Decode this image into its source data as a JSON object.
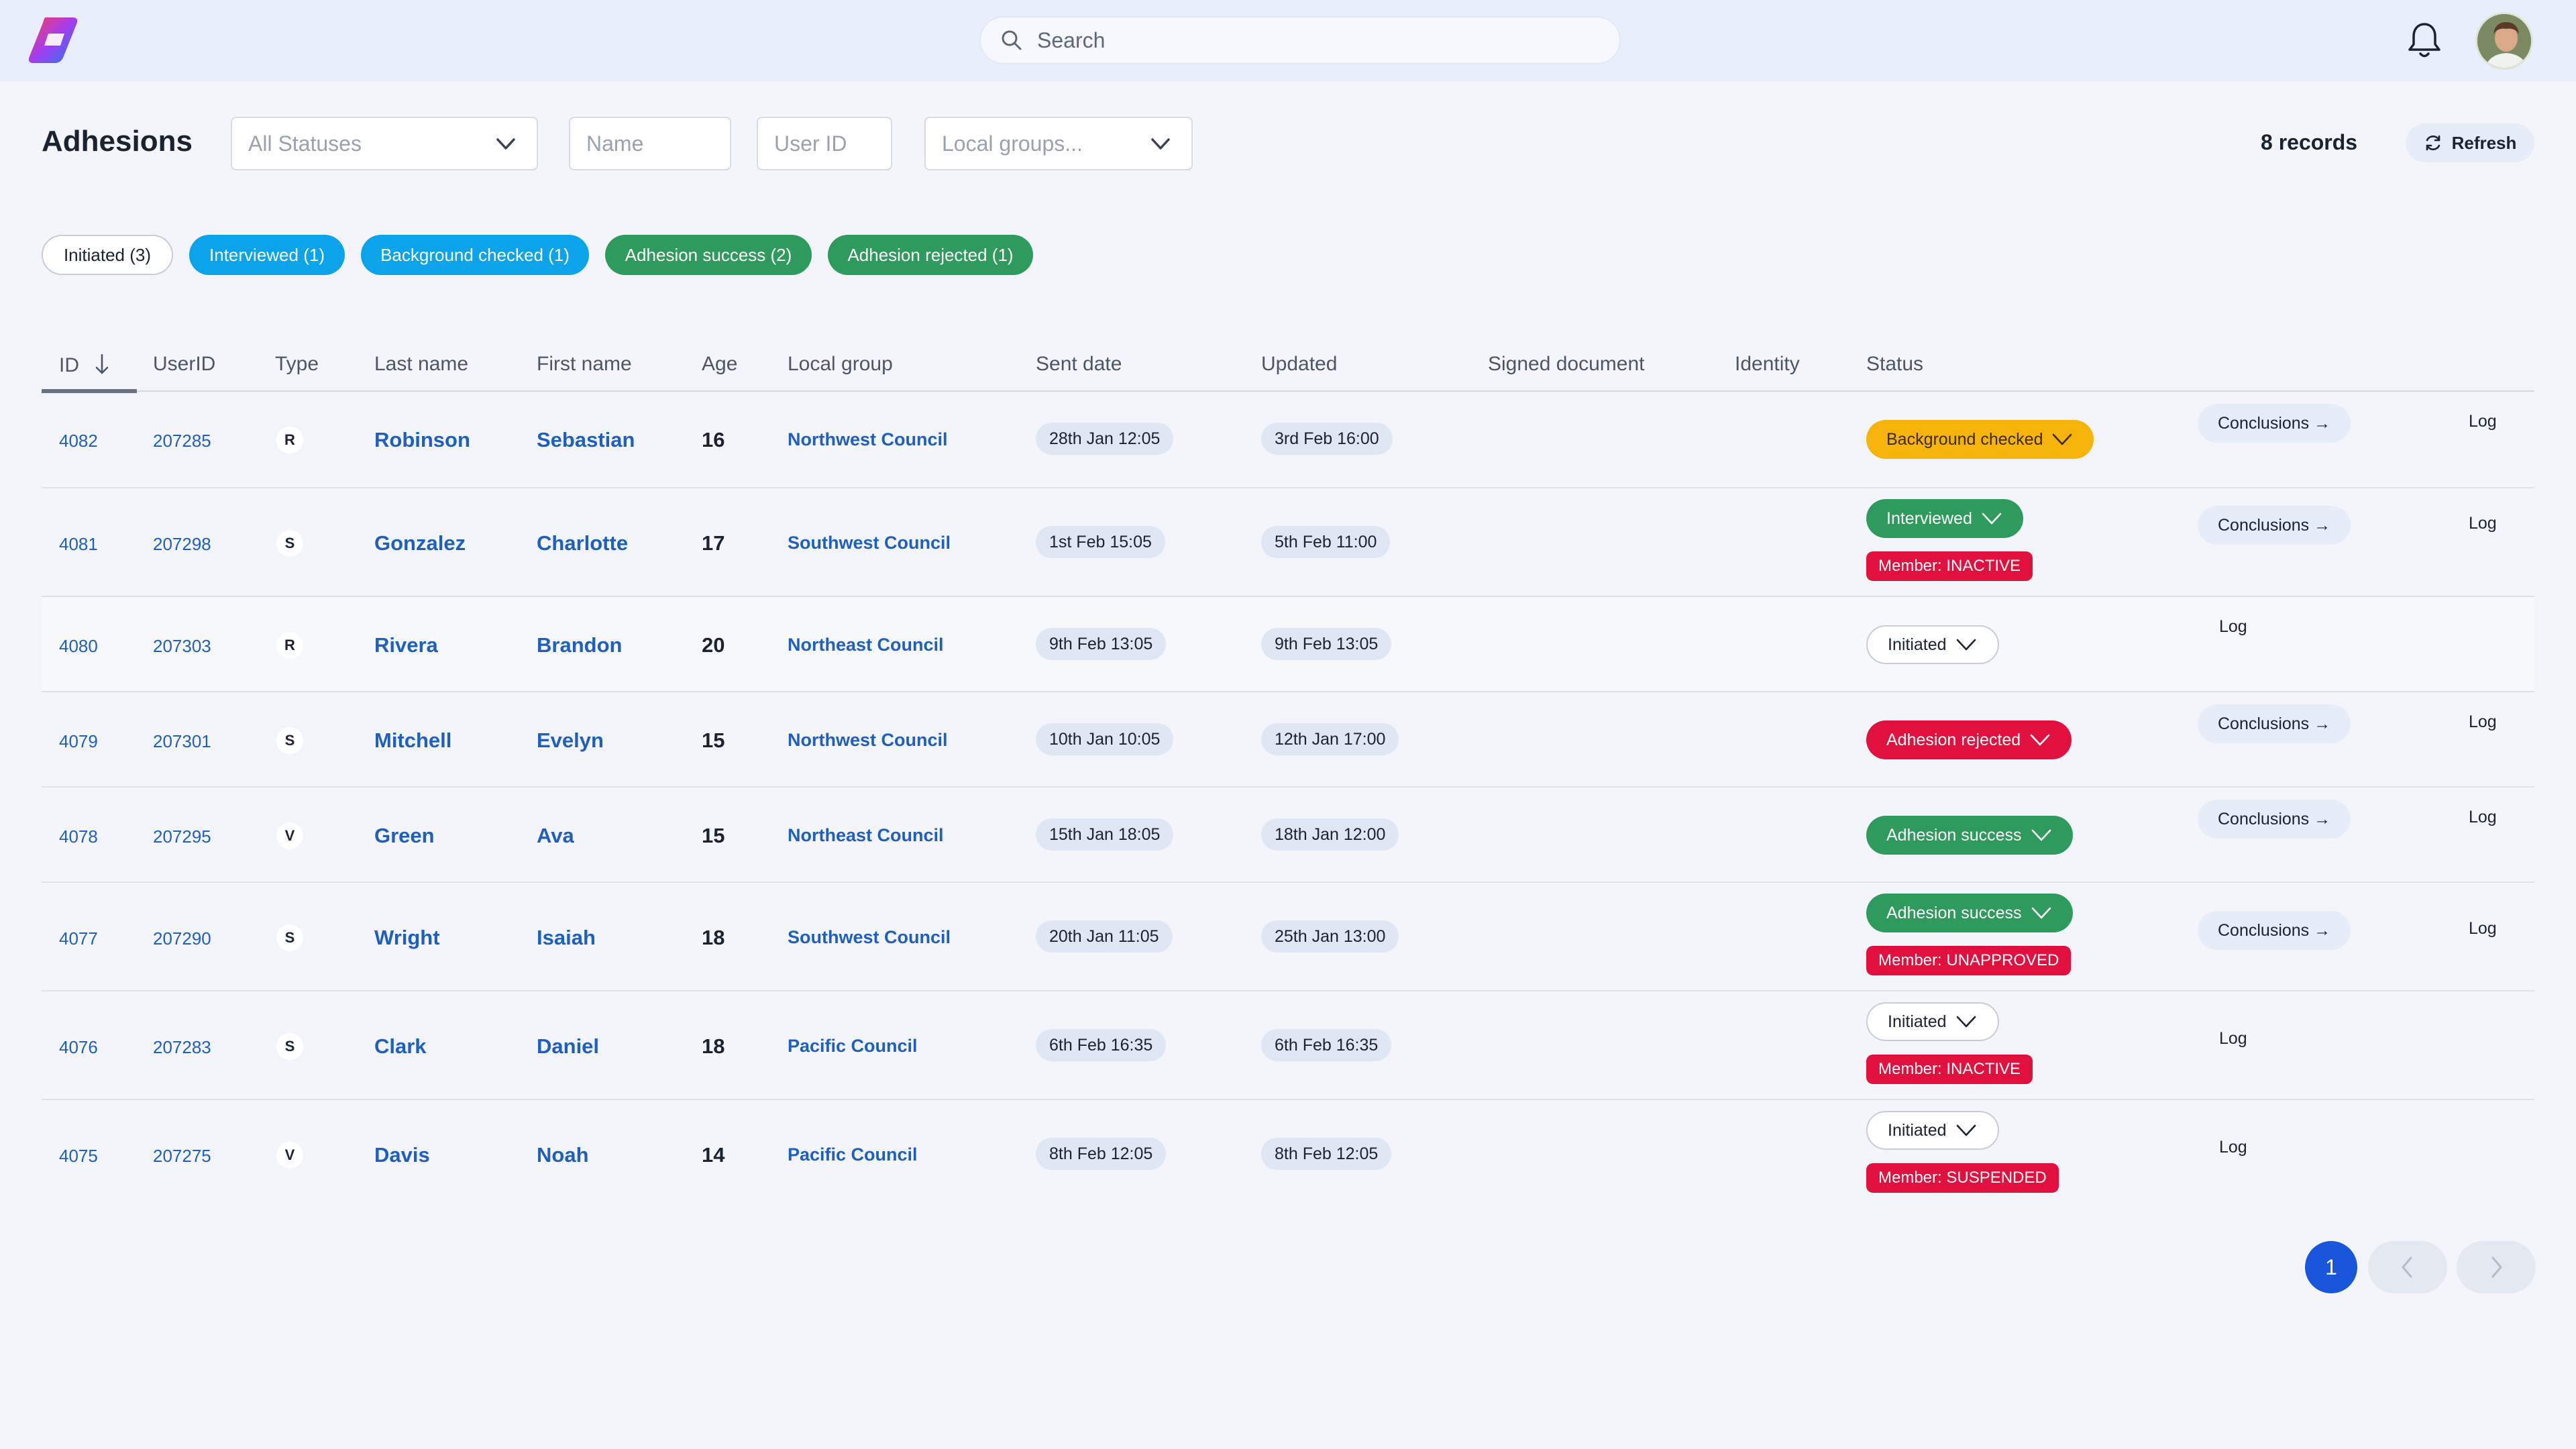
{
  "header": {
    "search_placeholder": "Search"
  },
  "page": {
    "title": "Adhesions",
    "filters": {
      "status_select": "All Statuses",
      "name_placeholder": "Name",
      "userid_placeholder": "User ID",
      "local_groups_select": "Local groups..."
    },
    "records": "8 records",
    "refresh_label": "Refresh"
  },
  "chips": [
    {
      "label": "Initiated (3)"
    },
    {
      "label": "Interviewed (1)"
    },
    {
      "label": "Background checked (1)"
    },
    {
      "label": "Adhesion success (2)"
    },
    {
      "label": "Adhesion rejected (1)"
    }
  ],
  "table": {
    "columns": [
      "ID",
      "UserID",
      "Type",
      "Last name",
      "First name",
      "Age",
      "Local group",
      "Sent date",
      "Updated",
      "Signed document",
      "Identity",
      "Status"
    ],
    "rows": [
      {
        "id": "4082",
        "userid": "207285",
        "type": "R",
        "last": "Robinson",
        "first": "Sebastian",
        "age": "16",
        "group": "Northwest Council",
        "sent": "28th Jan 12:05",
        "updated": "3rd Feb 16:00",
        "status": "Background checked",
        "member": "",
        "conclusions": "Conclusions →",
        "log": "Log"
      },
      {
        "id": "4081",
        "userid": "207298",
        "type": "S",
        "last": "Gonzalez",
        "first": "Charlotte",
        "age": "17",
        "group": "Southwest Council",
        "sent": "1st Feb 15:05",
        "updated": "5th Feb 11:00",
        "status": "Interviewed",
        "member": "Member: INACTIVE",
        "conclusions": "Conclusions →",
        "log": "Log"
      },
      {
        "id": "4080",
        "userid": "207303",
        "type": "R",
        "last": "Rivera",
        "first": "Brandon",
        "age": "20",
        "group": "Northeast Council",
        "sent": "9th Feb 13:05",
        "updated": "9th Feb 13:05",
        "status": "Initiated",
        "member": "",
        "conclusions": "",
        "log": "Log"
      },
      {
        "id": "4079",
        "userid": "207301",
        "type": "S",
        "last": "Mitchell",
        "first": "Evelyn",
        "age": "15",
        "group": "Northwest Council",
        "sent": "10th Jan 10:05",
        "updated": "12th Jan 17:00",
        "status": "Adhesion rejected",
        "member": "",
        "conclusions": "Conclusions →",
        "log": "Log"
      },
      {
        "id": "4078",
        "userid": "207295",
        "type": "V",
        "last": "Green",
        "first": "Ava",
        "age": "15",
        "group": "Northeast Council",
        "sent": "15th Jan 18:05",
        "updated": "18th Jan 12:00",
        "status": "Adhesion success",
        "member": "",
        "conclusions": "Conclusions →",
        "log": "Log"
      },
      {
        "id": "4077",
        "userid": "207290",
        "type": "S",
        "last": "Wright",
        "first": "Isaiah",
        "age": "18",
        "group": "Southwest Council",
        "sent": "20th Jan 11:05",
        "updated": "25th Jan 13:00",
        "status": "Adhesion success",
        "member": "Member: UNAPPROVED",
        "conclusions": "Conclusions →",
        "log": "Log"
      },
      {
        "id": "4076",
        "userid": "207283",
        "type": "S",
        "last": "Clark",
        "first": "Daniel",
        "age": "18",
        "group": "Pacific Council",
        "sent": "6th Feb 16:35",
        "updated": "6th Feb 16:35",
        "status": "Initiated",
        "member": "Member: INACTIVE",
        "conclusions": "",
        "log": "Log"
      },
      {
        "id": "4075",
        "userid": "207275",
        "type": "V",
        "last": "Davis",
        "first": "Noah",
        "age": "14",
        "group": "Pacific Council",
        "sent": "8th Feb 12:05",
        "updated": "8th Feb 12:05",
        "status": "Initiated",
        "member": "Member: SUSPENDED",
        "conclusions": "",
        "log": "Log"
      }
    ]
  },
  "pagination": {
    "current": "1"
  },
  "colors": {
    "accent_blue": "#1a56db",
    "chip_blue": "#0ba4ea",
    "success_green": "#2f9a5e",
    "danger_red": "#e2103f",
    "warning_amber": "#f6b40b"
  }
}
